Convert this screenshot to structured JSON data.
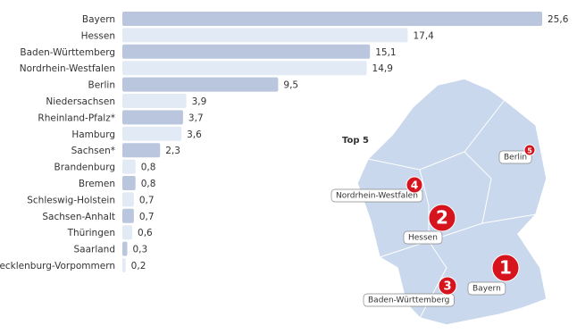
{
  "chart_data": {
    "type": "bar",
    "orientation": "horizontal",
    "categories": [
      "Bayern",
      "Hessen",
      "Baden-Württemberg",
      "Nordrhein-Westfalen",
      "Berlin",
      "Niedersachsen",
      "Rheinland-Pfalz*",
      "Hamburg",
      "Sachsen*",
      "Brandenburg",
      "Bremen",
      "Schleswig-Holstein",
      "Sachsen-Anhalt",
      "Thüringen",
      "Saarland",
      "Mecklenburg-Vorpommern"
    ],
    "values": [
      25.6,
      17.4,
      15.1,
      14.9,
      9.5,
      3.9,
      3.7,
      3.6,
      2.3,
      0.8,
      0.8,
      0.7,
      0.7,
      0.6,
      0.3,
      0.2
    ],
    "value_labels": [
      "25,6",
      "17,4",
      "15,1",
      "14,9",
      "9,5",
      "3,9",
      "3,7",
      "3,6",
      "2,3",
      "0,8",
      "0,8",
      "0,7",
      "0,7",
      "0,6",
      "0,3",
      "0,2"
    ],
    "colors": [
      "#b9c6de",
      "#e1eaf5",
      "#b9c6de",
      "#e1eaf5",
      "#b9c6de",
      "#e1eaf5",
      "#b9c6de",
      "#e1eaf5",
      "#b9c6de",
      "#e1eaf5",
      "#b9c6de",
      "#e1eaf5",
      "#b9c6de",
      "#e1eaf5",
      "#b9c6de",
      "#e1eaf5"
    ],
    "xlim": [
      0,
      25.6
    ],
    "map": {
      "title": "Top 5",
      "markers": [
        {
          "rank": 1,
          "label": "Bayern"
        },
        {
          "rank": 2,
          "label": "Hessen"
        },
        {
          "rank": 3,
          "label": "Baden-Württemberg"
        },
        {
          "rank": 4,
          "label": "Nordrhein-Westfalen"
        },
        {
          "rank": 5,
          "label": "Berlin"
        }
      ]
    }
  }
}
